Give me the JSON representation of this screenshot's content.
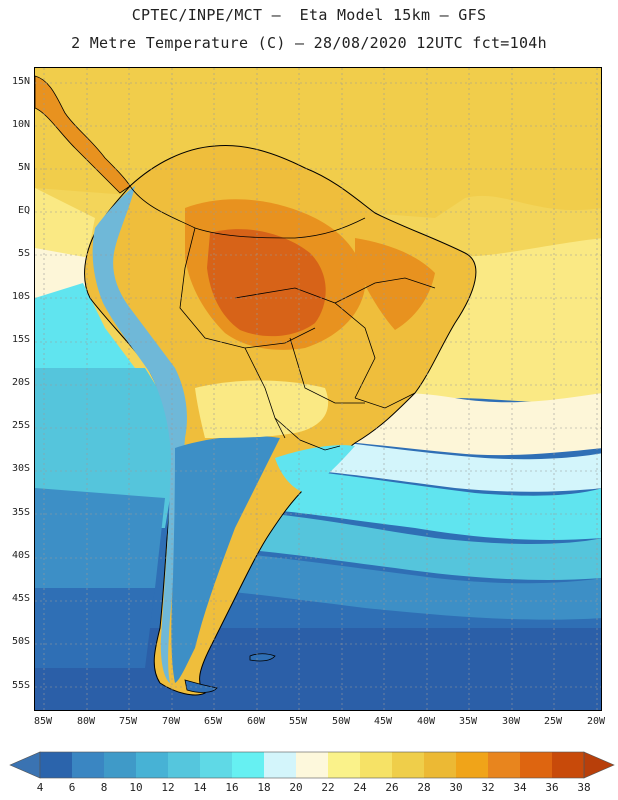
{
  "header": {
    "line1": "CPTEC/INPE/MCT –  Eta Model 15km – GFS",
    "line2": "2 Metre Temperature (C) – 28/08/2020 12UTC fct=104h"
  },
  "map": {
    "lat_labels": [
      "15N",
      "10N",
      "5N",
      "EQ",
      "5S",
      "10S",
      "15S",
      "20S",
      "25S",
      "30S",
      "35S",
      "40S",
      "45S",
      "50S",
      "55S"
    ],
    "lon_labels": [
      "85W",
      "80W",
      "75W",
      "70W",
      "65W",
      "60W",
      "55W",
      "50W",
      "45W",
      "40W",
      "35W",
      "30W",
      "25W",
      "20W"
    ]
  },
  "colorbar": {
    "labels": [
      "4",
      "6",
      "8",
      "10",
      "12",
      "14",
      "16",
      "18",
      "20",
      "22",
      "24",
      "26",
      "28",
      "30",
      "32",
      "34",
      "36",
      "38"
    ],
    "colors": [
      "#3a73b2",
      "#2b64ac",
      "#3a86c2",
      "#3f9ac8",
      "#47b2d5",
      "#55c6dd",
      "#5fd9e6",
      "#66f0f2",
      "#d3f5fb",
      "#fdf8dc",
      "#faf28a",
      "#f6e266",
      "#efce4a",
      "#ecb934",
      "#f0a419",
      "#e8851e",
      "#de6510",
      "#c84a0a",
      "#b83f0a"
    ]
  },
  "palette": {
    "ocean_south": "#2b5fa8",
    "ocean_deep": "#2f6fb5",
    "ocean_mid": "#3d8fc6",
    "ocean_cyan": "#55c5dc",
    "ocean_bright": "#60e4ef",
    "ocean_warm": "#f6e06a",
    "ocean_pale": "#fdf6d8",
    "land_hot": "#d76318",
    "land_warm": "#e8921f",
    "land_mild": "#efbe3c",
    "land_andes": "#6fb8d8"
  }
}
